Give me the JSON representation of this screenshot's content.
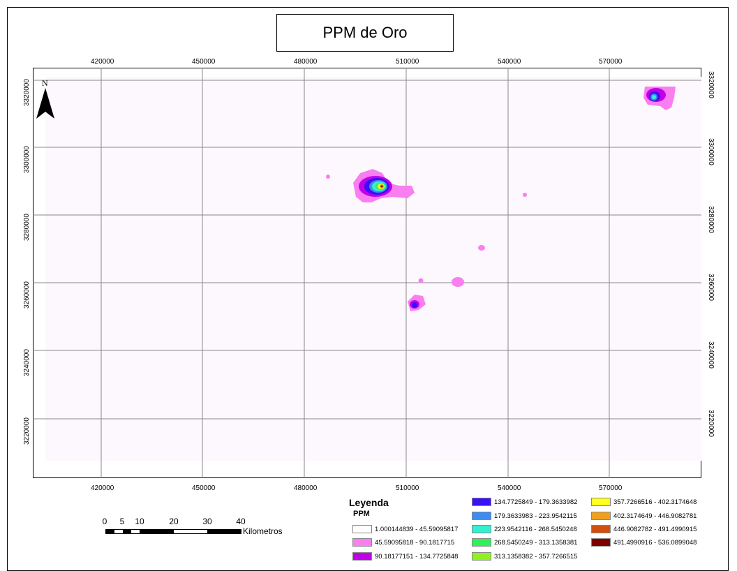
{
  "title": "PPM de Oro",
  "x_ticks": [
    "420000",
    "450000",
    "480000",
    "510000",
    "540000",
    "570000"
  ],
  "y_ticks": [
    "3320000",
    "3300000",
    "3280000",
    "3260000",
    "3240000",
    "3220000"
  ],
  "north_label": "N",
  "scale": {
    "numbers": [
      "0",
      "5",
      "10",
      "20",
      "30",
      "40"
    ],
    "unit": "Kilometros"
  },
  "legend": {
    "title": "Leyenda",
    "subtitle": "PPM",
    "items": [
      {
        "label": "1.000144839 - 45.59095817",
        "color": "#ffffff"
      },
      {
        "label": "45.59095818 - 90.1817715",
        "color": "#f97ff0"
      },
      {
        "label": "90.18177151 - 134.7725848",
        "color": "#c000e8"
      },
      {
        "label": "134.7725849 - 179.3633982",
        "color": "#3a10f5"
      },
      {
        "label": "179.3633983 - 223.9542115",
        "color": "#3f8cf0"
      },
      {
        "label": "223.9542116 - 268.5450248",
        "color": "#35f0d0"
      },
      {
        "label": "268.5450249 - 313.1358381",
        "color": "#2ff05a"
      },
      {
        "label": "313.1358382 - 357.7266515",
        "color": "#90f020"
      },
      {
        "label": "357.7266516 - 402.3174648",
        "color": "#ffff20"
      },
      {
        "label": "402.3174649 - 446.9082781",
        "color": "#f0a020"
      },
      {
        "label": "446.9082782 - 491.4990915",
        "color": "#d05010"
      },
      {
        "label": "491.4990916 - 536.0899048",
        "color": "#800000"
      }
    ]
  }
}
